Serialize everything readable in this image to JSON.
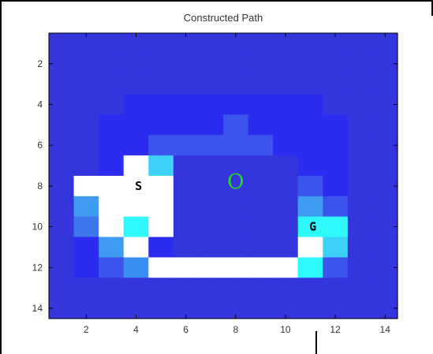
{
  "chart_data": {
    "type": "heatmap",
    "title": "Constructed Path",
    "xlabel": "",
    "ylabel": "",
    "xlim": [
      0.5,
      14.5
    ],
    "ylim": [
      0.5,
      14.5
    ],
    "y_reversed": true,
    "xticks": [
      2,
      4,
      6,
      8,
      10,
      12,
      14
    ],
    "yticks": [
      2,
      4,
      6,
      8,
      10,
      12,
      14
    ],
    "grid": false,
    "colors": {
      "0": "#3535de",
      "1": "#2c2cf0",
      "2": "#3c54ee",
      "3": "#3e76ee",
      "4": "#3f9bf2",
      "5": "#3cd0f6",
      "6": "#2ef8fa",
      "7": "#ffffff",
      "8": "#3a90f0"
    },
    "grid_values": [
      [
        0,
        0,
        0,
        0,
        0,
        0,
        0,
        0,
        0,
        0,
        0,
        0,
        0,
        0
      ],
      [
        0,
        0,
        0,
        0,
        0,
        0,
        0,
        0,
        0,
        0,
        0,
        0,
        0,
        0
      ],
      [
        0,
        0,
        0,
        0,
        0,
        0,
        0,
        0,
        0,
        0,
        0,
        0,
        0,
        0
      ],
      [
        0,
        0,
        0,
        1,
        1,
        1,
        1,
        1,
        1,
        1,
        1,
        0,
        0,
        0
      ],
      [
        0,
        0,
        1,
        1,
        1,
        1,
        1,
        2,
        1,
        1,
        1,
        1,
        0,
        0
      ],
      [
        0,
        0,
        1,
        1,
        2,
        2,
        2,
        2,
        2,
        1,
        1,
        1,
        0,
        0
      ],
      [
        0,
        0,
        1,
        7,
        5,
        0,
        0,
        0,
        0,
        0,
        1,
        1,
        0,
        0
      ],
      [
        0,
        7,
        7,
        7,
        7,
        0,
        0,
        0,
        0,
        0,
        2,
        1,
        0,
        0
      ],
      [
        0,
        4,
        7,
        7,
        7,
        0,
        0,
        0,
        0,
        0,
        4,
        2,
        0,
        0
      ],
      [
        0,
        3,
        7,
        6,
        7,
        0,
        0,
        0,
        0,
        0,
        6,
        6,
        0,
        0
      ],
      [
        0,
        1,
        4,
        7,
        1,
        0,
        0,
        0,
        0,
        0,
        7,
        5,
        0,
        0
      ],
      [
        0,
        1,
        2,
        8,
        7,
        7,
        7,
        7,
        7,
        7,
        6,
        2,
        0,
        0
      ],
      [
        0,
        0,
        0,
        0,
        0,
        0,
        0,
        0,
        0,
        0,
        0,
        0,
        0,
        0
      ],
      [
        0,
        0,
        0,
        0,
        0,
        0,
        0,
        0,
        0,
        0,
        0,
        0,
        0,
        0
      ]
    ],
    "annotations": [
      {
        "text": "S",
        "x": 4.1,
        "y": 8.0,
        "kind": "start"
      },
      {
        "text": "G",
        "x": 11.1,
        "y": 10.0,
        "kind": "goal"
      },
      {
        "text": "O",
        "x": 8.0,
        "y": 7.8,
        "kind": "obstacle"
      }
    ]
  }
}
